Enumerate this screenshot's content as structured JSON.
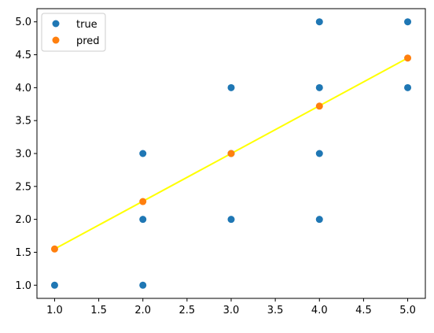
{
  "chart_data": {
    "type": "scatter",
    "title": "",
    "xlabel": "",
    "ylabel": "",
    "xlim": [
      0.8,
      5.2
    ],
    "ylim": [
      0.8,
      5.2
    ],
    "xticks": [
      1.0,
      1.5,
      2.0,
      2.5,
      3.0,
      3.5,
      4.0,
      4.5,
      5.0
    ],
    "yticks": [
      1.0,
      1.5,
      2.0,
      2.5,
      3.0,
      3.5,
      4.0,
      4.5,
      5.0
    ],
    "grid": false,
    "legend_position": "top-left",
    "series": [
      {
        "name": "true",
        "color": "#1f77b4",
        "points": [
          [
            1,
            1
          ],
          [
            2,
            1
          ],
          [
            2,
            2
          ],
          [
            2,
            3
          ],
          [
            3,
            2
          ],
          [
            3,
            3
          ],
          [
            3,
            4
          ],
          [
            4,
            2
          ],
          [
            4,
            3
          ],
          [
            4,
            4
          ],
          [
            4,
            5
          ],
          [
            5,
            4
          ],
          [
            5,
            5
          ]
        ]
      },
      {
        "name": "pred",
        "color": "#ff7f0e",
        "points": [
          [
            1,
            1.55
          ],
          [
            2,
            2.27
          ],
          [
            3,
            3.0
          ],
          [
            4,
            3.72
          ],
          [
            5,
            4.45
          ]
        ]
      }
    ],
    "fit_line": {
      "color": "#ffff00",
      "points": [
        [
          1,
          1.55
        ],
        [
          5,
          4.45
        ]
      ]
    }
  }
}
